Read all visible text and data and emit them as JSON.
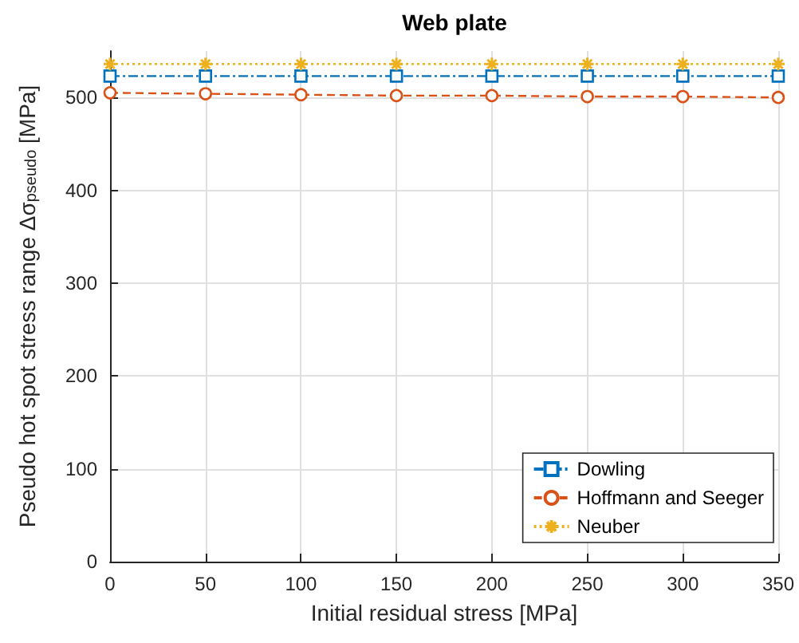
{
  "chart_data": {
    "type": "line",
    "title": "Web plate",
    "xlabel": "Initial residual stress [MPa]",
    "ylabel": "Pseudo hot spot stress range Δσ$_{pseudo}$ [MPa]",
    "x": [
      0,
      50,
      100,
      150,
      200,
      250,
      300,
      350
    ],
    "series": [
      {
        "name": "Dowling",
        "color": "#0072bd",
        "marker": "square",
        "line_style": "dashdot",
        "values": [
          523,
          523,
          523,
          523,
          523,
          523,
          523,
          523
        ]
      },
      {
        "name": "Hoffmann and Seeger",
        "color": "#d95319",
        "marker": "circle",
        "line_style": "dashed",
        "values": [
          505,
          504,
          503,
          502,
          502,
          501,
          501,
          500
        ]
      },
      {
        "name": "Neuber",
        "color": "#edb120",
        "marker": "cross",
        "line_style": "dotted",
        "values": [
          536,
          536,
          536,
          536,
          536,
          536,
          536,
          536
        ]
      }
    ],
    "xlim": [
      0,
      350
    ],
    "xticks": [
      0,
      50,
      100,
      150,
      200,
      250,
      300,
      350
    ],
    "ylim": [
      0,
      550
    ],
    "yticks": [
      0,
      100,
      200,
      300,
      400,
      500
    ],
    "grid": true,
    "legend": "bottom right"
  }
}
